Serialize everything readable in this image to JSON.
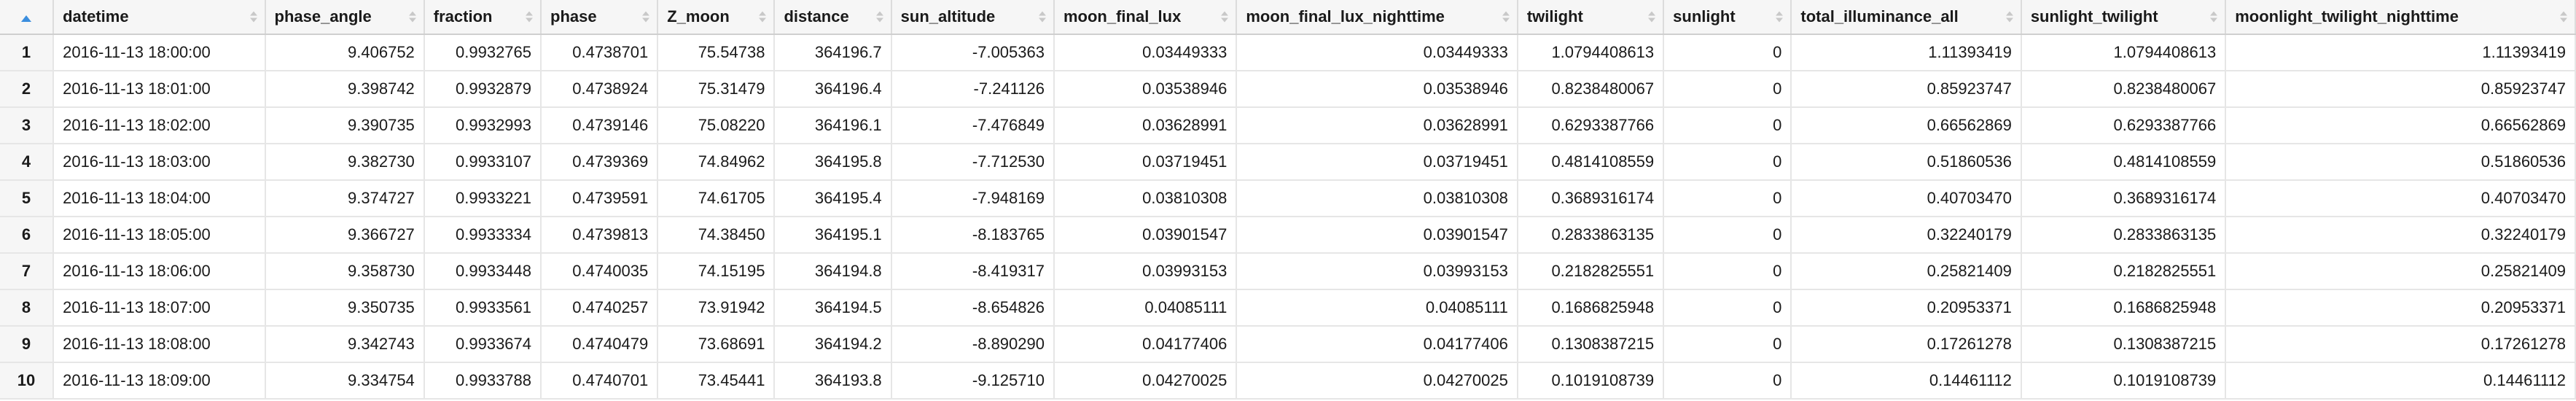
{
  "accent_color": "#3b8ede",
  "row_number_header_icon": "sort-ascending-icon",
  "columns": [
    "datetime",
    "phase_angle",
    "fraction",
    "phase",
    "Z_moon",
    "distance",
    "sun_altitude",
    "moon_final_lux",
    "moon_final_lux_nighttime",
    "twilight",
    "sunlight",
    "total_illuminance_all",
    "sunlight_twilight",
    "moonlight_twilight_nighttime"
  ],
  "rows": [
    {
      "rn": "1",
      "cells": [
        "2016-11-13 18:00:00",
        "9.406752",
        "0.9932765",
        "0.4738701",
        "75.54738",
        "364196.7",
        "-7.005363",
        "0.03449333",
        "0.03449333",
        "1.0794408613",
        "0",
        "1.11393419",
        "1.0794408613",
        "1.11393419"
      ]
    },
    {
      "rn": "2",
      "cells": [
        "2016-11-13 18:01:00",
        "9.398742",
        "0.9932879",
        "0.4738924",
        "75.31479",
        "364196.4",
        "-7.241126",
        "0.03538946",
        "0.03538946",
        "0.8238480067",
        "0",
        "0.85923747",
        "0.8238480067",
        "0.85923747"
      ]
    },
    {
      "rn": "3",
      "cells": [
        "2016-11-13 18:02:00",
        "9.390735",
        "0.9932993",
        "0.4739146",
        "75.08220",
        "364196.1",
        "-7.476849",
        "0.03628991",
        "0.03628991",
        "0.6293387766",
        "0",
        "0.66562869",
        "0.6293387766",
        "0.66562869"
      ]
    },
    {
      "rn": "4",
      "cells": [
        "2016-11-13 18:03:00",
        "9.382730",
        "0.9933107",
        "0.4739369",
        "74.84962",
        "364195.8",
        "-7.712530",
        "0.03719451",
        "0.03719451",
        "0.4814108559",
        "0",
        "0.51860536",
        "0.4814108559",
        "0.51860536"
      ]
    },
    {
      "rn": "5",
      "cells": [
        "2016-11-13 18:04:00",
        "9.374727",
        "0.9933221",
        "0.4739591",
        "74.61705",
        "364195.4",
        "-7.948169",
        "0.03810308",
        "0.03810308",
        "0.3689316174",
        "0",
        "0.40703470",
        "0.3689316174",
        "0.40703470"
      ]
    },
    {
      "rn": "6",
      "cells": [
        "2016-11-13 18:05:00",
        "9.366727",
        "0.9933334",
        "0.4739813",
        "74.38450",
        "364195.1",
        "-8.183765",
        "0.03901547",
        "0.03901547",
        "0.2833863135",
        "0",
        "0.32240179",
        "0.2833863135",
        "0.32240179"
      ]
    },
    {
      "rn": "7",
      "cells": [
        "2016-11-13 18:06:00",
        "9.358730",
        "0.9933448",
        "0.4740035",
        "74.15195",
        "364194.8",
        "-8.419317",
        "0.03993153",
        "0.03993153",
        "0.2182825551",
        "0",
        "0.25821409",
        "0.2182825551",
        "0.25821409"
      ]
    },
    {
      "rn": "8",
      "cells": [
        "2016-11-13 18:07:00",
        "9.350735",
        "0.9933561",
        "0.4740257",
        "73.91942",
        "364194.5",
        "-8.654826",
        "0.04085111",
        "0.04085111",
        "0.1686825948",
        "0",
        "0.20953371",
        "0.1686825948",
        "0.20953371"
      ]
    },
    {
      "rn": "9",
      "cells": [
        "2016-11-13 18:08:00",
        "9.342743",
        "0.9933674",
        "0.4740479",
        "73.68691",
        "364194.2",
        "-8.890290",
        "0.04177406",
        "0.04177406",
        "0.1308387215",
        "0",
        "0.17261278",
        "0.1308387215",
        "0.17261278"
      ]
    },
    {
      "rn": "10",
      "cells": [
        "2016-11-13 18:09:00",
        "9.334754",
        "0.9933788",
        "0.4740701",
        "73.45441",
        "364193.8",
        "-9.125710",
        "0.04270025",
        "0.04270025",
        "0.1019108739",
        "0",
        "0.14461112",
        "0.1019108739",
        "0.14461112"
      ]
    }
  ]
}
